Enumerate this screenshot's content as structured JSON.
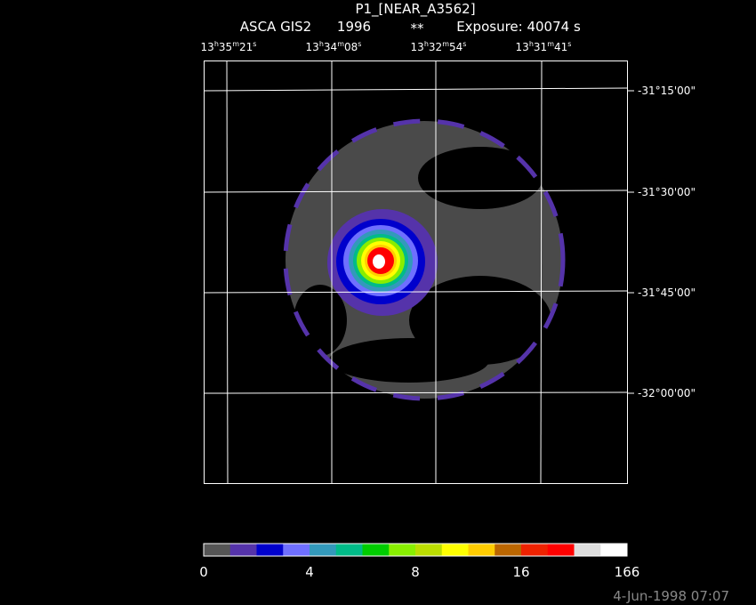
{
  "header": {
    "title": "P1_[NEAR_A3562]",
    "instrument": "ASCA GIS2",
    "year": "1996",
    "flag": "**",
    "exposure": "Exposure: 40074 s"
  },
  "ra_labels": [
    [
      "13",
      "h",
      "35",
      "m",
      "21",
      "s"
    ],
    [
      "13",
      "h",
      "34",
      "m",
      "08",
      "s"
    ],
    [
      "13",
      "h",
      "32",
      "m",
      "54",
      "s"
    ],
    [
      "13",
      "h",
      "31",
      "m",
      "41",
      "s"
    ]
  ],
  "dec_labels": [
    "-31°15'00\"",
    "-31°30'00\"",
    "-31°45'00\"",
    "-32°00'00\""
  ],
  "colorbar": {
    "colors": [
      "#555555",
      "#5533aa",
      "#0000cc",
      "#6f6fff",
      "#3399bb",
      "#00bb88",
      "#00cc00",
      "#88ee00",
      "#bbdd00",
      "#ffff00",
      "#ffcc00",
      "#bb6600",
      "#ee2200",
      "#ff0000",
      "#dddddd",
      "#ffffff"
    ],
    "labels": [
      0,
      4,
      8,
      16,
      166
    ]
  },
  "footer": {
    "date": "4-Jun-1998 07:07"
  }
}
